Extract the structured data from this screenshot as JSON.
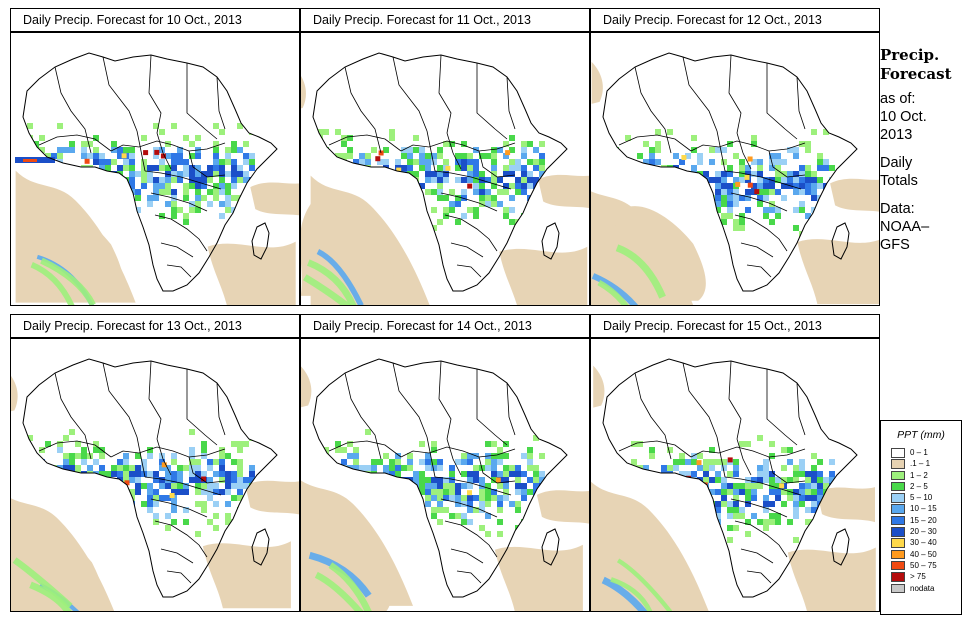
{
  "panels": [
    {
      "title": "Daily Precip. Forecast for  10 Oct., 2013",
      "seed": 11
    },
    {
      "title": "Daily Precip. Forecast for  11 Oct., 2013",
      "seed": 23
    },
    {
      "title": "Daily Precip. Forecast for  12 Oct., 2013",
      "seed": 37
    },
    {
      "title": "Daily Precip. Forecast for  13 Oct., 2013",
      "seed": 41
    },
    {
      "title": "Daily Precip. Forecast for  14 Oct., 2013",
      "seed": 53
    },
    {
      "title": "Daily Precip. Forecast for  15 Oct., 2013",
      "seed": 67
    }
  ],
  "sidebar": {
    "heading1": "Precip.",
    "heading2": "Forecast",
    "asof": "as of:",
    "date1": "10 Oct.",
    "date2": "2013",
    "daily": "Daily",
    "totals": "Totals",
    "data": "Data:",
    "source1": "NOAA–",
    "source2": "GFS"
  },
  "legend": {
    "title": "PPT (mm)",
    "items": [
      {
        "label": "0 – 1",
        "color": "#ffffff"
      },
      {
        "label": ".1 – 1",
        "color": "#e6d2b2"
      },
      {
        "label": "1 – 2",
        "color": "#9df07c"
      },
      {
        "label": "2 – 5",
        "color": "#49d84a"
      },
      {
        "label": "5 – 10",
        "color": "#9bd0f5"
      },
      {
        "label": "10 – 15",
        "color": "#5aa8ee"
      },
      {
        "label": "15 – 20",
        "color": "#2f78e6"
      },
      {
        "label": "20 – 30",
        "color": "#1b4fc8"
      },
      {
        "label": "30 – 40",
        "color": "#ffd94a"
      },
      {
        "label": "40 – 50",
        "color": "#ff9a1e"
      },
      {
        "label": "50 – 75",
        "color": "#f04a12"
      },
      {
        "label": "> 75",
        "color": "#b40c0c"
      },
      {
        "label": "nodata",
        "color": "#c8c8c8"
      }
    ]
  }
}
